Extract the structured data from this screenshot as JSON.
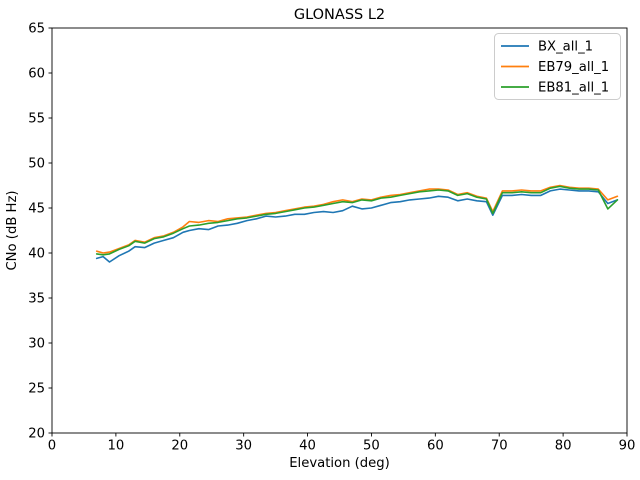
{
  "chart_data": {
    "type": "line",
    "title": "GLONASS L2",
    "xlabel": "Elevation (deg)",
    "ylabel": "CNo (dB Hz)",
    "xlim": [
      0,
      90
    ],
    "ylim": [
      20,
      65
    ],
    "xticks": [
      0,
      10,
      20,
      30,
      40,
      50,
      60,
      70,
      80,
      90
    ],
    "yticks": [
      20,
      25,
      30,
      35,
      40,
      45,
      50,
      55,
      60,
      65
    ],
    "grid": false,
    "legend_position": "upper right",
    "x": [
      7,
      8,
      9,
      10.5,
      12,
      13,
      14.5,
      16,
      17.5,
      19,
      20.5,
      21.5,
      23,
      24.5,
      26,
      27.5,
      29,
      30.5,
      32,
      33.5,
      35,
      36.5,
      38,
      39.5,
      41,
      42.5,
      44,
      45.5,
      47,
      48.5,
      50,
      51.5,
      53,
      54.5,
      56,
      57.5,
      59,
      60.5,
      62,
      63.5,
      65,
      66.5,
      68,
      69,
      70.5,
      72,
      73.5,
      75,
      76.5,
      78,
      79.5,
      81,
      82.5,
      84,
      85.5,
      87,
      88.5
    ],
    "series": [
      {
        "name": "BX_all_1",
        "color": "#1f77b4",
        "values": [
          39.4,
          39.6,
          39.0,
          39.7,
          40.2,
          40.7,
          40.6,
          41.1,
          41.4,
          41.7,
          42.3,
          42.5,
          42.7,
          42.6,
          43.0,
          43.1,
          43.3,
          43.6,
          43.8,
          44.1,
          44.0,
          44.1,
          44.3,
          44.3,
          44.5,
          44.6,
          44.5,
          44.7,
          45.2,
          44.9,
          45.0,
          45.3,
          45.6,
          45.7,
          45.9,
          46.0,
          46.1,
          46.3,
          46.2,
          45.8,
          46.0,
          45.8,
          45.7,
          44.2,
          46.4,
          46.4,
          46.5,
          46.4,
          46.4,
          46.9,
          47.1,
          47.0,
          46.9,
          46.9,
          46.8,
          45.5,
          45.9
        ]
      },
      {
        "name": "EB79_all_1",
        "color": "#ff7f0e",
        "values": [
          40.2,
          40.0,
          40.1,
          40.5,
          40.9,
          41.4,
          41.2,
          41.7,
          41.9,
          42.3,
          42.9,
          43.5,
          43.4,
          43.6,
          43.5,
          43.8,
          43.9,
          44.0,
          44.2,
          44.4,
          44.5,
          44.7,
          44.9,
          45.1,
          45.2,
          45.4,
          45.7,
          45.9,
          45.7,
          46.0,
          45.9,
          46.2,
          46.4,
          46.5,
          46.7,
          46.9,
          47.1,
          47.1,
          47.0,
          46.5,
          46.7,
          46.3,
          46.1,
          44.6,
          46.9,
          46.9,
          47.0,
          46.9,
          46.9,
          47.3,
          47.5,
          47.3,
          47.2,
          47.2,
          47.1,
          45.9,
          46.3
        ]
      },
      {
        "name": "EB81_all_1",
        "color": "#2ca02c",
        "values": [
          39.9,
          39.8,
          39.9,
          40.4,
          40.8,
          41.3,
          41.1,
          41.6,
          41.8,
          42.2,
          42.7,
          43.0,
          43.1,
          43.3,
          43.4,
          43.6,
          43.8,
          43.9,
          44.1,
          44.3,
          44.4,
          44.6,
          44.8,
          45.0,
          45.1,
          45.3,
          45.5,
          45.7,
          45.6,
          45.9,
          45.8,
          46.1,
          46.2,
          46.4,
          46.6,
          46.8,
          46.9,
          47.0,
          46.9,
          46.4,
          46.6,
          46.2,
          46.0,
          44.4,
          46.7,
          46.7,
          46.8,
          46.7,
          46.7,
          47.2,
          47.4,
          47.2,
          47.1,
          47.1,
          47.0,
          44.9,
          45.9
        ]
      }
    ]
  }
}
